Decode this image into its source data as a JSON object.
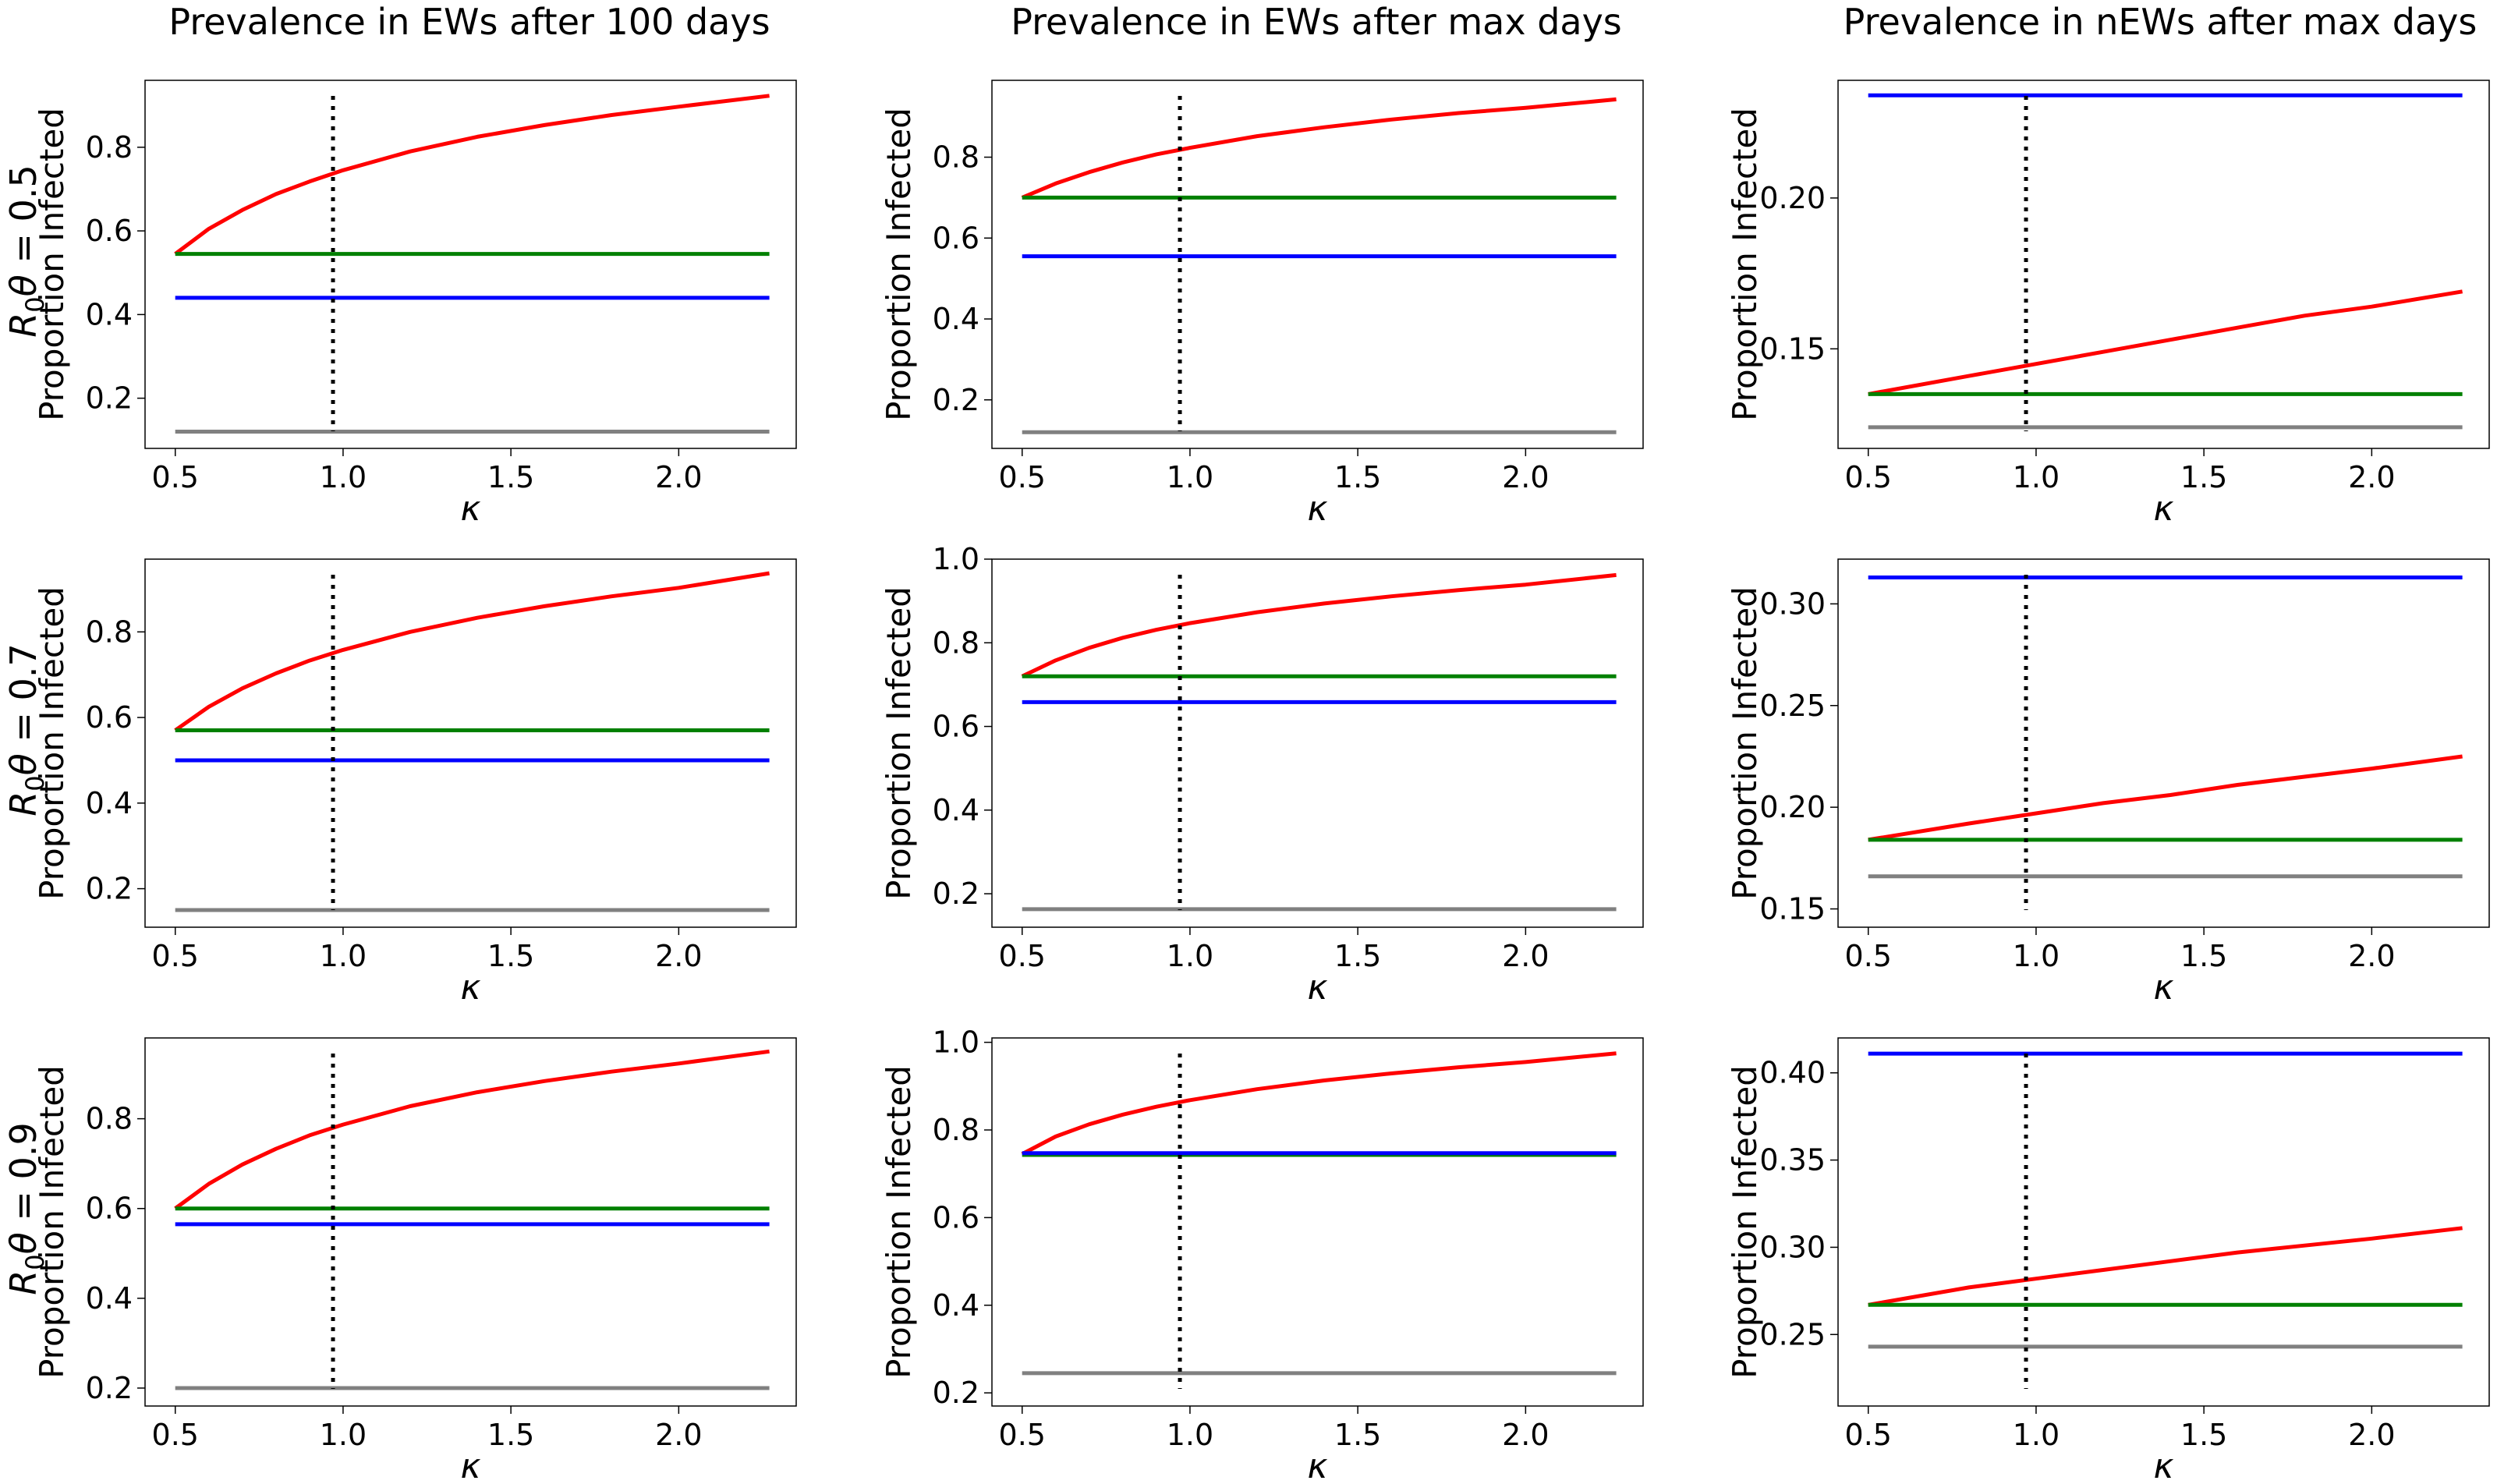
{
  "figure": {
    "column_titles": [
      "Prevalence in EWs after 100 days",
      "Prevalence in EWs after max days",
      "Prevalence in nEWs after max days"
    ],
    "row_labels": [
      {
        "symbol": "R",
        "subscript": "0",
        "greek": "θ",
        "equals": " = 0.5"
      },
      {
        "symbol": "R",
        "subscript": "0",
        "greek": "θ",
        "equals": " = 0.7"
      },
      {
        "symbol": "R",
        "subscript": "0",
        "greek": "θ",
        "equals": " = 0.9"
      }
    ]
  },
  "chart_data": [
    {
      "type": "line",
      "row": 0,
      "col": 0,
      "xlabel": "κ",
      "ylabel": "Proportion Infected",
      "title": "Prevalence in EWs after 100 days",
      "xlim": [
        0.41,
        2.35
      ],
      "ylim": [
        0.08,
        0.96
      ],
      "xticks": [
        "0.5",
        "1.0",
        "1.5",
        "2.0"
      ],
      "xtick_values": [
        0.5,
        1.0,
        1.5,
        2.0
      ],
      "yticks": [
        "0.2",
        "0.4",
        "0.6",
        "0.8"
      ],
      "ytick_values": [
        0.2,
        0.4,
        0.6,
        0.8
      ],
      "vline_x": 0.97,
      "series": [
        {
          "color": "#ff0000",
          "x": [
            0.5,
            0.6,
            0.7,
            0.8,
            0.9,
            1.0,
            1.2,
            1.4,
            1.6,
            1.8,
            2.0,
            2.27
          ],
          "y": [
            0.545,
            0.605,
            0.65,
            0.688,
            0.718,
            0.745,
            0.79,
            0.825,
            0.853,
            0.877,
            0.897,
            0.923
          ]
        },
        {
          "color": "#008000",
          "x": [
            0.5,
            2.27
          ],
          "y": [
            0.545,
            0.545
          ]
        },
        {
          "color": "#0000ff",
          "x": [
            0.5,
            2.27
          ],
          "y": [
            0.44,
            0.44
          ]
        },
        {
          "color": "#808080",
          "x": [
            0.5,
            2.27
          ],
          "y": [
            0.12,
            0.12
          ]
        }
      ]
    },
    {
      "type": "line",
      "row": 0,
      "col": 1,
      "xlabel": "κ",
      "ylabel": "Proportion Infected",
      "title": "Prevalence in EWs after max days",
      "xlim": [
        0.41,
        2.35
      ],
      "ylim": [
        0.08,
        0.99
      ],
      "xticks": [
        "0.5",
        "1.0",
        "1.5",
        "2.0"
      ],
      "xtick_values": [
        0.5,
        1.0,
        1.5,
        2.0
      ],
      "yticks": [
        "0.2",
        "0.4",
        "0.6",
        "0.8"
      ],
      "ytick_values": [
        0.2,
        0.4,
        0.6,
        0.8
      ],
      "vline_x": 0.97,
      "series": [
        {
          "color": "#ff0000",
          "x": [
            0.5,
            0.6,
            0.7,
            0.8,
            0.9,
            1.0,
            1.2,
            1.4,
            1.6,
            1.8,
            2.0,
            2.27
          ],
          "y": [
            0.7,
            0.735,
            0.763,
            0.787,
            0.807,
            0.823,
            0.852,
            0.874,
            0.893,
            0.909,
            0.922,
            0.943
          ]
        },
        {
          "color": "#008000",
          "x": [
            0.5,
            2.27
          ],
          "y": [
            0.7,
            0.7
          ]
        },
        {
          "color": "#0000ff",
          "x": [
            0.5,
            2.27
          ],
          "y": [
            0.555,
            0.555
          ]
        },
        {
          "color": "#808080",
          "x": [
            0.5,
            2.27
          ],
          "y": [
            0.12,
            0.12
          ]
        }
      ]
    },
    {
      "type": "line",
      "row": 0,
      "col": 2,
      "xlabel": "κ",
      "ylabel": "Proportion Infected",
      "title": "Prevalence in nEWs after max days",
      "xlim": [
        0.41,
        2.35
      ],
      "ylim": [
        0.117,
        0.239
      ],
      "xticks": [
        "0.5",
        "1.0",
        "1.5",
        "2.0"
      ],
      "xtick_values": [
        0.5,
        1.0,
        1.5,
        2.0
      ],
      "yticks": [
        "0.15",
        "0.20"
      ],
      "ytick_values": [
        0.15,
        0.2
      ],
      "vline_x": 0.97,
      "series": [
        {
          "color": "#ff0000",
          "x": [
            0.5,
            0.8,
            1.0,
            1.2,
            1.4,
            1.6,
            1.8,
            2.0,
            2.27
          ],
          "y": [
            0.135,
            0.141,
            0.145,
            0.149,
            0.153,
            0.157,
            0.161,
            0.164,
            0.169
          ]
        },
        {
          "color": "#008000",
          "x": [
            0.5,
            2.27
          ],
          "y": [
            0.135,
            0.135
          ]
        },
        {
          "color": "#0000ff",
          "x": [
            0.5,
            2.27
          ],
          "y": [
            0.234,
            0.234
          ]
        },
        {
          "color": "#808080",
          "x": [
            0.5,
            2.27
          ],
          "y": [
            0.124,
            0.124
          ]
        }
      ]
    },
    {
      "type": "line",
      "row": 1,
      "col": 0,
      "xlabel": "κ",
      "ylabel": "Proportion Infected",
      "title": "",
      "xlim": [
        0.41,
        2.35
      ],
      "ylim": [
        0.11,
        0.97
      ],
      "xticks": [
        "0.5",
        "1.0",
        "1.5",
        "2.0"
      ],
      "xtick_values": [
        0.5,
        1.0,
        1.5,
        2.0
      ],
      "yticks": [
        "0.2",
        "0.4",
        "0.6",
        "0.8"
      ],
      "ytick_values": [
        0.2,
        0.4,
        0.6,
        0.8
      ],
      "vline_x": 0.97,
      "series": [
        {
          "color": "#ff0000",
          "x": [
            0.5,
            0.6,
            0.7,
            0.8,
            0.9,
            1.0,
            1.2,
            1.4,
            1.6,
            1.8,
            2.0,
            2.27
          ],
          "y": [
            0.57,
            0.625,
            0.668,
            0.703,
            0.733,
            0.758,
            0.8,
            0.833,
            0.86,
            0.883,
            0.903,
            0.937
          ]
        },
        {
          "color": "#008000",
          "x": [
            0.5,
            2.27
          ],
          "y": [
            0.57,
            0.57
          ]
        },
        {
          "color": "#0000ff",
          "x": [
            0.5,
            2.27
          ],
          "y": [
            0.5,
            0.5
          ]
        },
        {
          "color": "#808080",
          "x": [
            0.5,
            2.27
          ],
          "y": [
            0.15,
            0.15
          ]
        }
      ]
    },
    {
      "type": "line",
      "row": 1,
      "col": 1,
      "xlabel": "κ",
      "ylabel": "Proportion Infected",
      "title": "",
      "xlim": [
        0.41,
        2.35
      ],
      "ylim": [
        0.12,
        1.0
      ],
      "xticks": [
        "0.5",
        "1.0",
        "1.5",
        "2.0"
      ],
      "xtick_values": [
        0.5,
        1.0,
        1.5,
        2.0
      ],
      "yticks": [
        "0.2",
        "0.4",
        "0.6",
        "0.8",
        "1.0"
      ],
      "ytick_values": [
        0.2,
        0.4,
        0.6,
        0.8,
        1.0
      ],
      "vline_x": 0.97,
      "series": [
        {
          "color": "#ff0000",
          "x": [
            0.5,
            0.6,
            0.7,
            0.8,
            0.9,
            1.0,
            1.2,
            1.4,
            1.6,
            1.8,
            2.0,
            2.27
          ],
          "y": [
            0.72,
            0.758,
            0.788,
            0.812,
            0.831,
            0.847,
            0.873,
            0.894,
            0.911,
            0.926,
            0.939,
            0.962
          ]
        },
        {
          "color": "#008000",
          "x": [
            0.5,
            2.27
          ],
          "y": [
            0.72,
            0.72
          ]
        },
        {
          "color": "#0000ff",
          "x": [
            0.5,
            2.27
          ],
          "y": [
            0.658,
            0.658
          ]
        },
        {
          "color": "#808080",
          "x": [
            0.5,
            2.27
          ],
          "y": [
            0.163,
            0.163
          ]
        }
      ]
    },
    {
      "type": "line",
      "row": 1,
      "col": 2,
      "xlabel": "κ",
      "ylabel": "Proportion Infected",
      "title": "",
      "xlim": [
        0.41,
        2.35
      ],
      "ylim": [
        0.141,
        0.322
      ],
      "xticks": [
        "0.5",
        "1.0",
        "1.5",
        "2.0"
      ],
      "xtick_values": [
        0.5,
        1.0,
        1.5,
        2.0
      ],
      "yticks": [
        "0.15",
        "0.20",
        "0.25",
        "0.30"
      ],
      "ytick_values": [
        0.15,
        0.2,
        0.25,
        0.3
      ],
      "vline_x": 0.97,
      "series": [
        {
          "color": "#ff0000",
          "x": [
            0.5,
            0.8,
            1.0,
            1.2,
            1.4,
            1.6,
            1.8,
            2.0,
            2.27
          ],
          "y": [
            0.184,
            0.192,
            0.197,
            0.202,
            0.206,
            0.211,
            0.215,
            0.219,
            0.225
          ]
        },
        {
          "color": "#008000",
          "x": [
            0.5,
            2.27
          ],
          "y": [
            0.184,
            0.184
          ]
        },
        {
          "color": "#0000ff",
          "x": [
            0.5,
            2.27
          ],
          "y": [
            0.313,
            0.313
          ]
        },
        {
          "color": "#808080",
          "x": [
            0.5,
            2.27
          ],
          "y": [
            0.166,
            0.166
          ]
        }
      ]
    },
    {
      "type": "line",
      "row": 2,
      "col": 0,
      "xlabel": "κ",
      "ylabel": "Proportion Infected",
      "title": "",
      "xlim": [
        0.41,
        2.35
      ],
      "ylim": [
        0.16,
        0.98
      ],
      "xticks": [
        "0.5",
        "1.0",
        "1.5",
        "2.0"
      ],
      "xtick_values": [
        0.5,
        1.0,
        1.5,
        2.0
      ],
      "yticks": [
        "0.2",
        "0.4",
        "0.6",
        "0.8"
      ],
      "ytick_values": [
        0.2,
        0.4,
        0.6,
        0.8
      ],
      "vline_x": 0.97,
      "series": [
        {
          "color": "#ff0000",
          "x": [
            0.5,
            0.6,
            0.7,
            0.8,
            0.9,
            1.0,
            1.2,
            1.4,
            1.6,
            1.8,
            2.0,
            2.27
          ],
          "y": [
            0.6,
            0.655,
            0.698,
            0.733,
            0.763,
            0.787,
            0.828,
            0.859,
            0.884,
            0.905,
            0.923,
            0.95
          ]
        },
        {
          "color": "#008000",
          "x": [
            0.5,
            2.27
          ],
          "y": [
            0.6,
            0.6
          ]
        },
        {
          "color": "#0000ff",
          "x": [
            0.5,
            2.27
          ],
          "y": [
            0.565,
            0.565
          ]
        },
        {
          "color": "#808080",
          "x": [
            0.5,
            2.27
          ],
          "y": [
            0.2,
            0.2
          ]
        }
      ]
    },
    {
      "type": "line",
      "row": 2,
      "col": 1,
      "xlabel": "κ",
      "ylabel": "Proportion Infected",
      "title": "",
      "xlim": [
        0.41,
        2.35
      ],
      "ylim": [
        0.17,
        1.01
      ],
      "xticks": [
        "0.5",
        "1.0",
        "1.5",
        "2.0"
      ],
      "xtick_values": [
        0.5,
        1.0,
        1.5,
        2.0
      ],
      "yticks": [
        "0.2",
        "0.4",
        "0.6",
        "0.8",
        "1.0"
      ],
      "ytick_values": [
        0.2,
        0.4,
        0.6,
        0.8,
        1.0
      ],
      "vline_x": 0.97,
      "series": [
        {
          "color": "#ff0000",
          "x": [
            0.5,
            0.6,
            0.7,
            0.8,
            0.9,
            1.0,
            1.2,
            1.4,
            1.6,
            1.8,
            2.0,
            2.27
          ],
          "y": [
            0.745,
            0.785,
            0.813,
            0.835,
            0.853,
            0.868,
            0.893,
            0.913,
            0.929,
            0.943,
            0.955,
            0.975
          ]
        },
        {
          "color": "#008000",
          "x": [
            0.5,
            2.27
          ],
          "y": [
            0.743,
            0.743
          ]
        },
        {
          "color": "#0000ff",
          "x": [
            0.5,
            2.27
          ],
          "y": [
            0.747,
            0.747
          ]
        },
        {
          "color": "#808080",
          "x": [
            0.5,
            2.27
          ],
          "y": [
            0.245,
            0.245
          ]
        }
      ]
    },
    {
      "type": "line",
      "row": 2,
      "col": 2,
      "xlabel": "κ",
      "ylabel": "Proportion Infected",
      "title": "",
      "xlim": [
        0.41,
        2.35
      ],
      "ylim": [
        0.209,
        0.42
      ],
      "xticks": [
        "0.5",
        "1.0",
        "1.5",
        "2.0"
      ],
      "xtick_values": [
        0.5,
        1.0,
        1.5,
        2.0
      ],
      "yticks": [
        "0.25",
        "0.30",
        "0.35",
        "0.40"
      ],
      "ytick_values": [
        0.25,
        0.3,
        0.35,
        0.4
      ],
      "vline_x": 0.97,
      "series": [
        {
          "color": "#ff0000",
          "x": [
            0.5,
            0.8,
            1.0,
            1.2,
            1.4,
            1.6,
            1.8,
            2.0,
            2.27
          ],
          "y": [
            0.267,
            0.277,
            0.282,
            0.287,
            0.292,
            0.297,
            0.301,
            0.305,
            0.311
          ]
        },
        {
          "color": "#008000",
          "x": [
            0.5,
            2.27
          ],
          "y": [
            0.267,
            0.267
          ]
        },
        {
          "color": "#0000ff",
          "x": [
            0.5,
            2.27
          ],
          "y": [
            0.411,
            0.411
          ]
        },
        {
          "color": "#808080",
          "x": [
            0.5,
            2.27
          ],
          "y": [
            0.243,
            0.243
          ]
        }
      ]
    }
  ]
}
